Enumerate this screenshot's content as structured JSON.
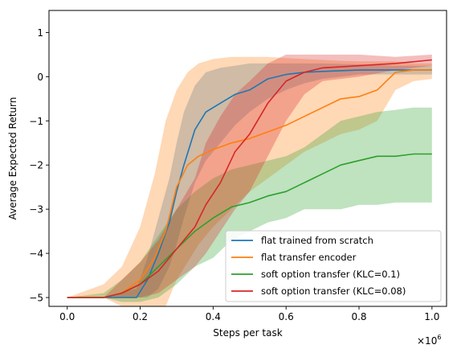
{
  "chart_data": {
    "type": "line",
    "xlabel": "Steps per task",
    "ylabel": "Average Expected Return",
    "x_multiplier_label": "×10",
    "x_multiplier_exp": "6",
    "xlim": [
      -0.05,
      1.04
    ],
    "ylim": [
      -5.2,
      1.5
    ],
    "xticks": [
      0.0,
      0.2,
      0.4,
      0.6,
      0.8,
      1.0
    ],
    "xtick_labels": [
      "0.0",
      "0.2",
      "0.4",
      "0.6",
      "0.8",
      "1.0"
    ],
    "yticks": [
      1,
      0,
      -1,
      -2,
      -3,
      -4,
      -5
    ],
    "ytick_labels": [
      "1",
      "0",
      "−1",
      "−2",
      "−3",
      "−4",
      "−5"
    ],
    "grid": false,
    "legend_position": "lower-right",
    "series": [
      {
        "name": "flat trained from scratch",
        "color": "#1f77b4",
        "x": [
          0.0,
          0.1,
          0.19,
          0.22,
          0.25,
          0.28,
          0.3,
          0.32,
          0.35,
          0.38,
          0.42,
          0.46,
          0.5,
          0.55,
          0.6,
          0.65,
          0.7,
          0.8,
          0.9,
          1.0
        ],
        "y": [
          -5.0,
          -5.0,
          -5.0,
          -4.6,
          -4.0,
          -3.3,
          -2.6,
          -2.0,
          -1.2,
          -0.8,
          -0.6,
          -0.4,
          -0.3,
          -0.05,
          0.05,
          0.1,
          0.12,
          0.15,
          0.15,
          0.15
        ],
        "lower": [
          -5.0,
          -5.0,
          -5.0,
          -5.0,
          -4.8,
          -4.3,
          -3.8,
          -3.2,
          -2.4,
          -1.9,
          -1.5,
          -1.1,
          -0.8,
          -0.5,
          -0.3,
          -0.15,
          -0.05,
          0.05,
          0.05,
          0.05
        ],
        "upper": [
          -5.0,
          -5.0,
          -4.8,
          -4.1,
          -3.2,
          -2.3,
          -1.5,
          -0.8,
          -0.2,
          0.1,
          0.2,
          0.25,
          0.3,
          0.3,
          0.3,
          0.3,
          0.3,
          0.28,
          0.25,
          0.25
        ]
      },
      {
        "name": "flat transfer encoder",
        "color": "#ff7f0e",
        "x": [
          0.0,
          0.1,
          0.15,
          0.2,
          0.24,
          0.27,
          0.3,
          0.33,
          0.36,
          0.4,
          0.45,
          0.5,
          0.55,
          0.6,
          0.65,
          0.7,
          0.75,
          0.8,
          0.85,
          0.9,
          0.95,
          1.0
        ],
        "y": [
          -5.0,
          -5.0,
          -4.9,
          -4.6,
          -4.1,
          -3.5,
          -2.5,
          -2.0,
          -1.8,
          -1.65,
          -1.5,
          -1.4,
          -1.25,
          -1.1,
          -0.9,
          -0.7,
          -0.5,
          -0.45,
          -0.3,
          0.1,
          0.15,
          0.15
        ],
        "lower": [
          -5.0,
          -5.0,
          -5.2,
          -5.2,
          -5.2,
          -5.2,
          -4.6,
          -4.2,
          -3.8,
          -3.4,
          -3.0,
          -2.6,
          -2.3,
          -2.0,
          -1.7,
          -1.5,
          -1.3,
          -1.2,
          -1.0,
          -0.3,
          -0.1,
          -0.05
        ],
        "upper": [
          -5.0,
          -4.7,
          -4.3,
          -3.4,
          -2.2,
          -1.0,
          -0.3,
          0.1,
          0.3,
          0.4,
          0.45,
          0.45,
          0.45,
          0.42,
          0.4,
          0.38,
          0.36,
          0.35,
          0.35,
          0.35,
          0.3,
          0.3
        ]
      },
      {
        "name": "soft option transfer (KLC=0.1)",
        "color": "#2ca02c",
        "x": [
          0.0,
          0.1,
          0.15,
          0.2,
          0.25,
          0.3,
          0.35,
          0.4,
          0.45,
          0.5,
          0.55,
          0.6,
          0.65,
          0.7,
          0.75,
          0.8,
          0.85,
          0.9,
          0.95,
          1.0
        ],
        "y": [
          -5.0,
          -5.0,
          -4.9,
          -4.7,
          -4.3,
          -3.9,
          -3.5,
          -3.2,
          -2.95,
          -2.85,
          -2.7,
          -2.6,
          -2.4,
          -2.2,
          -2.0,
          -1.9,
          -1.8,
          -1.8,
          -1.75,
          -1.75
        ],
        "lower": [
          -5.0,
          -5.0,
          -5.1,
          -5.1,
          -5.0,
          -4.7,
          -4.3,
          -4.1,
          -3.7,
          -3.5,
          -3.3,
          -3.2,
          -3.0,
          -3.0,
          -3.0,
          -2.9,
          -2.9,
          -2.85,
          -2.85,
          -2.85
        ],
        "upper": [
          -5.0,
          -4.9,
          -4.6,
          -4.2,
          -3.6,
          -3.0,
          -2.6,
          -2.3,
          -2.1,
          -2.0,
          -1.9,
          -1.8,
          -1.6,
          -1.3,
          -1.0,
          -0.9,
          -0.8,
          -0.75,
          -0.7,
          -0.7
        ]
      },
      {
        "name": "soft option transfer (KLC=0.08)",
        "color": "#d62728",
        "x": [
          0.0,
          0.1,
          0.15,
          0.2,
          0.25,
          0.3,
          0.35,
          0.38,
          0.42,
          0.46,
          0.5,
          0.55,
          0.6,
          0.65,
          0.7,
          0.8,
          0.9,
          1.0
        ],
        "y": [
          -5.0,
          -5.0,
          -4.9,
          -4.7,
          -4.4,
          -3.9,
          -3.4,
          -2.9,
          -2.4,
          -1.7,
          -1.3,
          -0.6,
          -0.1,
          0.1,
          0.2,
          0.25,
          0.3,
          0.38
        ],
        "lower": [
          -5.0,
          -5.0,
          -5.0,
          -5.0,
          -4.9,
          -4.6,
          -4.3,
          -4.0,
          -3.5,
          -3.0,
          -2.6,
          -1.8,
          -1.0,
          -0.4,
          -0.1,
          0.0,
          0.15,
          0.25
        ],
        "upper": [
          -5.0,
          -5.0,
          -4.6,
          -4.2,
          -3.7,
          -3.0,
          -2.3,
          -1.5,
          -0.9,
          -0.4,
          -0.1,
          0.3,
          0.5,
          0.5,
          0.5,
          0.5,
          0.45,
          0.5
        ]
      }
    ]
  }
}
